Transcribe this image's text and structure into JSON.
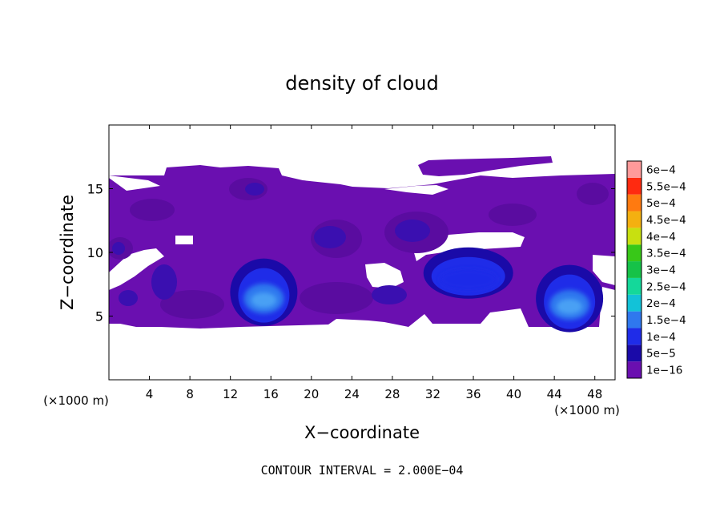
{
  "chart_data": {
    "type": "heatmap",
    "title": "density of cloud",
    "xlabel": "X−coordinate",
    "ylabel": "Z−coordinate",
    "x_unit_left": "(×1000 m)",
    "x_unit_right": "(×1000 m)",
    "xlim": [
      0,
      50
    ],
    "ylim": [
      0,
      20
    ],
    "x_ticks": [
      4,
      8,
      12,
      16,
      20,
      24,
      28,
      32,
      36,
      40,
      44,
      48
    ],
    "y_ticks": [
      5,
      10,
      15
    ],
    "footer": "CONTOUR INTERVAL = 2.000E−04",
    "colorbar": {
      "levels": [
        "1e−16",
        "5e−5",
        "1e−4",
        "1.5e−4",
        "2e−4",
        "2.5e−4",
        "3e−4",
        "3.5e−4",
        "4e−4",
        "4.5e−4",
        "5e−4",
        "5.5e−4",
        "6e−4"
      ],
      "colors": [
        "#6a0fb0",
        "#1a0aa8",
        "#1f2ce8",
        "#2f78ee",
        "#12c2d8",
        "#14d89a",
        "#16c248",
        "#38c818",
        "#c8e010",
        "#f4b010",
        "#ff7a10",
        "#ff2a10",
        "#ff9a9a"
      ]
    },
    "cloud_layer": {
      "z_bottom": 4.3,
      "z_top": 16.2,
      "base_value": "1e−16"
    },
    "cores": [
      {
        "x": 15.3,
        "z": 6.5,
        "level": "1.5e−4"
      },
      {
        "x": 45.5,
        "z": 6.0,
        "level": "1.5e−4"
      },
      {
        "x": 35.5,
        "z": 8.0,
        "level": "1e−4"
      }
    ]
  }
}
